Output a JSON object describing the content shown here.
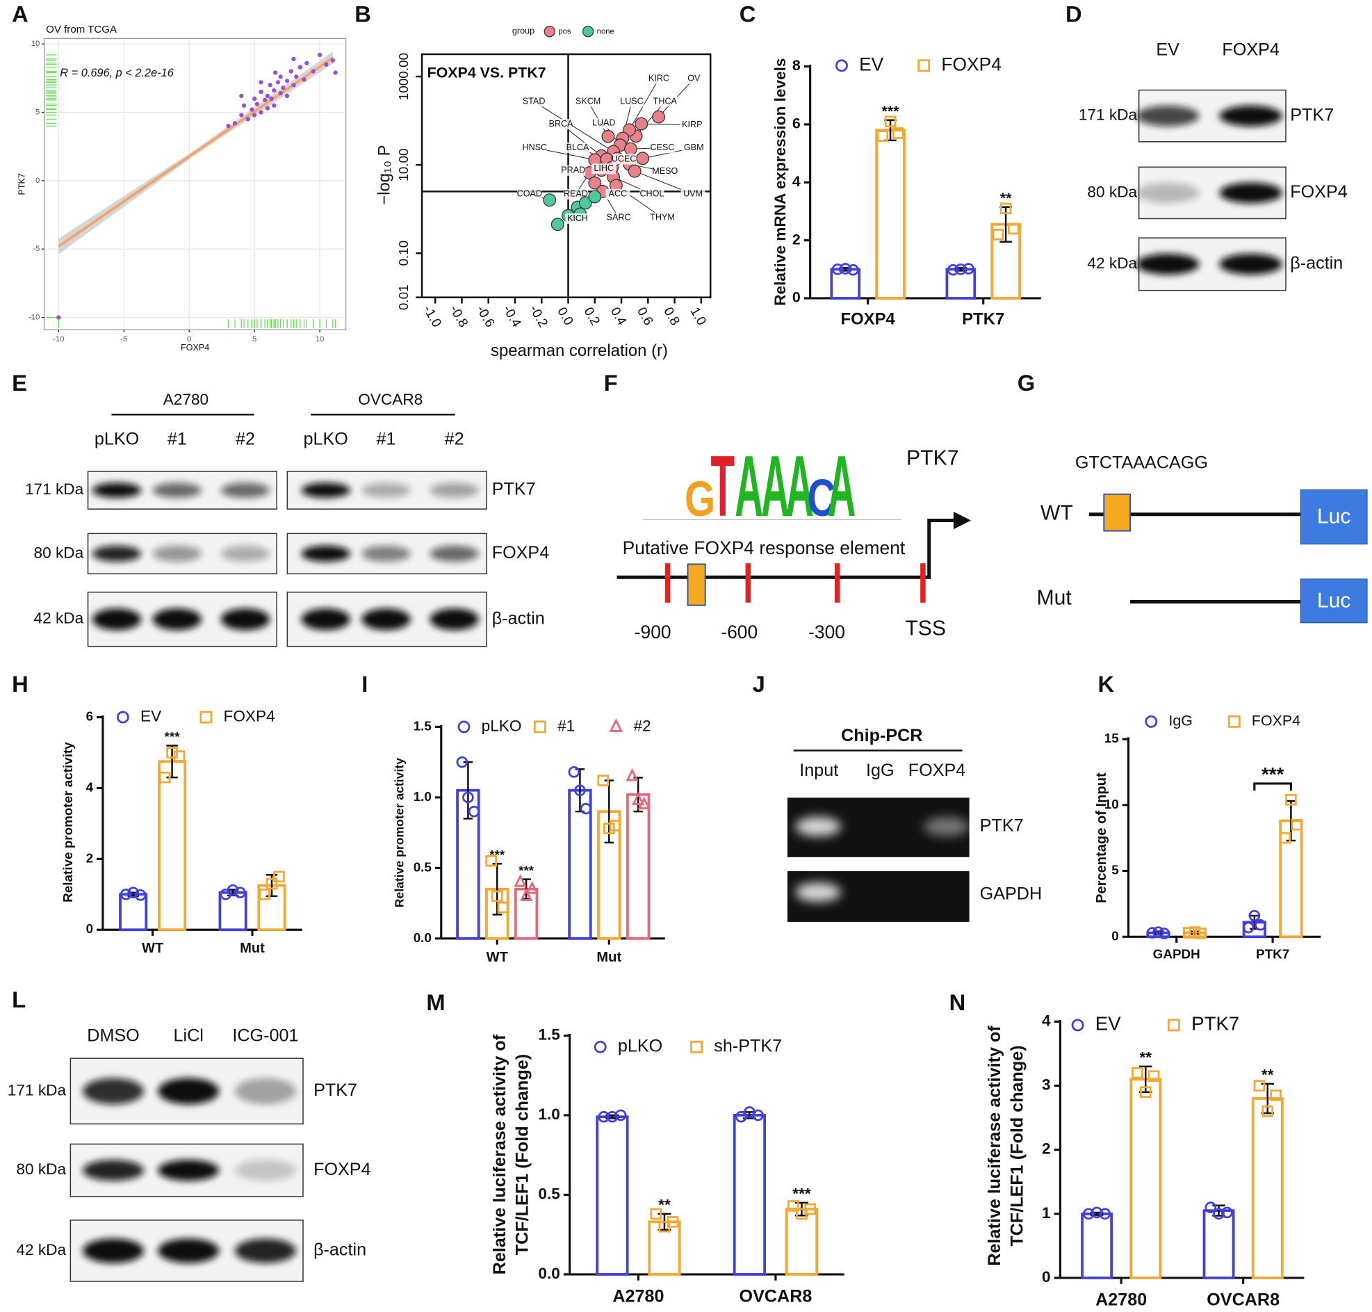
{
  "panel_letters": [
    "A",
    "B",
    "C",
    "D",
    "E",
    "F",
    "G",
    "H",
    "I",
    "J",
    "K",
    "L",
    "M",
    "N"
  ],
  "chart_data": [
    {
      "type": "scatter",
      "title": "OV from TCGA",
      "annotation": "R = 0.696, p < 2.2e-16",
      "xlabel": "FOXP4",
      "ylabel": "PTK7",
      "series": [
        {
          "color": "#9b4fd6",
          "x": [
            -10,
            3.5,
            4,
            4.2,
            4.5,
            4.8,
            5,
            5,
            5.2,
            5.5,
            5.5,
            5.8,
            6,
            6,
            6.2,
            6.3,
            6.5,
            6.5,
            6.8,
            7,
            7,
            7.2,
            7.5,
            7.5,
            7.8,
            8,
            8.2,
            8.5,
            8.8,
            9,
            9.5,
            10,
            10.5,
            11,
            11.2,
            3,
            4,
            5.5,
            6.6,
            8
          ],
          "y": [
            -10,
            4.2,
            4.8,
            5.5,
            4.5,
            5.2,
            6,
            4.8,
            5.6,
            6.5,
            5,
            5.9,
            6.2,
            5.3,
            7,
            6,
            6.6,
            5.5,
            7.2,
            6.4,
            7.6,
            6.8,
            7.3,
            6.2,
            8,
            7,
            7.6,
            8.3,
            7.4,
            8.6,
            8,
            9.2,
            8.5,
            8.8,
            7.9,
            4,
            6.2,
            7.2,
            7.9,
            8.9
          ]
        }
      ],
      "fit": {
        "color": "#f4a469",
        "x": [
          -10,
          11
        ],
        "y": [
          -4.8,
          9.0
        ]
      },
      "rug_color": "#66dd55",
      "grid": true,
      "xlim": [
        -11.1,
        12
      ],
      "ylim": [
        -10.9,
        10.4
      ],
      "xticks": [
        -10,
        -5,
        0,
        5,
        10
      ],
      "yticks": [
        -10,
        -5,
        0,
        5,
        10
      ]
    },
    {
      "type": "scatter",
      "title": "FOXP4 VS. PTK7",
      "xlabel": "spearman correlation (r)",
      "ylabel": "−log₁₀ P",
      "legend_title": "group",
      "yscale": "log",
      "series": [
        {
          "name": "pos",
          "color": "#e8818a",
          "x": [
            0.68,
            0.55,
            0.51,
            0.46,
            0.41,
            0.3,
            0.39,
            0.47,
            0.56,
            0.46,
            0.34,
            0.25,
            0.2,
            0.29,
            0.37,
            0.33,
            0.25,
            0.16,
            0.2,
            0.34,
            0.5,
            0.36,
            0.26
          ],
          "y": [
            122,
            85,
            45,
            62,
            40,
            44,
            28,
            23,
            14,
            10.4,
            20,
            16,
            13,
            13.5,
            14,
            8.7,
            7.6,
            6.6,
            3.9,
            5.3,
            7.2,
            3.4,
            2.5
          ],
          "labels": [
            "OV",
            "KIRP",
            "THCA",
            "KIRC",
            "LUSC",
            "SKCM",
            "LUAD",
            "CESC",
            "GBM",
            "MESO",
            "STAD",
            "BRCA",
            "HNSC",
            "BLCA",
            "UCEC",
            "LIHC",
            "PRAD",
            "READ",
            "ACC",
            "CHOL",
            "UVM",
            "THYM",
            "SARC"
          ]
        },
        {
          "name": "none",
          "color": "#4dc9a0",
          "x": [
            -0.14,
            0.0,
            -0.08,
            0.07,
            0.13,
            0.2,
            0.09
          ],
          "y": [
            1.6,
            0.71,
            0.45,
            1.1,
            1.38,
            1.9,
            0.77
          ],
          "labels": [
            "COAD",
            "KICH",
            null,
            null,
            null,
            null,
            null
          ]
        }
      ],
      "hline": 2.5,
      "vline": 0,
      "xlim": [
        -1.1,
        1.07
      ],
      "ylim": [
        0.01,
        3200
      ],
      "xticks": [
        {
          "value": -1,
          "label": "-1.0"
        },
        {
          "value": -0.8,
          "label": "-0.8"
        },
        {
          "value": -0.6,
          "label": "-0.6"
        },
        {
          "value": -0.4,
          "label": "-0.4"
        },
        {
          "value": -0.2,
          "label": "-0.2"
        },
        {
          "value": 0,
          "label": "0.0"
        },
        {
          "value": 0.2,
          "label": "0.2"
        },
        {
          "value": 0.4,
          "label": "0.4"
        },
        {
          "value": 0.6,
          "label": "0.6"
        },
        {
          "value": 0.8,
          "label": "0.8"
        },
        {
          "value": 1,
          "label": "1.0"
        }
      ],
      "yticks": [
        0.01,
        {
          "value": 0.1,
          "label": "0.10"
        },
        {
          "value": 10,
          "label": "10.00"
        },
        {
          "value": 1000,
          "label": "1000.00"
        }
      ]
    },
    {
      "type": "bar",
      "ylabel": "Relative mRNA expression levels",
      "categories": [
        "FOXP4",
        "PTK7"
      ],
      "series": [
        {
          "name": "EV",
          "color": "#4040e0",
          "marker": "circle",
          "values": [
            1.0,
            1.0
          ],
          "errors": [
            0.05,
            0.05
          ],
          "points": [
            [
              1.0,
              1.02,
              0.98
            ],
            [
              0.98,
              1.0,
              1.02
            ]
          ],
          "annotations": [
            null,
            null
          ]
        },
        {
          "name": "FOXP4",
          "color": "#f4a832",
          "marker": "square",
          "values": [
            5.8,
            2.55
          ],
          "errors": [
            0.35,
            0.6
          ],
          "points": [
            [
              5.6,
              6.1,
              5.7
            ],
            [
              2.2,
              3.1,
              2.4
            ]
          ],
          "annotations": [
            "***",
            "**"
          ]
        }
      ],
      "ylim": [
        0,
        8
      ],
      "yticks": [
        0,
        2,
        4,
        6,
        8
      ]
    },
    {
      "type": "bar",
      "ylabel": "Relative promoter activity",
      "categories": [
        "WT",
        "Mut"
      ],
      "series": [
        {
          "name": "EV",
          "color": "#4040e0",
          "marker": "circle",
          "values": [
            1.0,
            1.05
          ],
          "errors": [
            0.05,
            0.08
          ],
          "points": [
            [
              1.0,
              1.05,
              0.98
            ],
            [
              1.0,
              1.12,
              1.05
            ]
          ],
          "annotations": [
            null,
            null
          ]
        },
        {
          "name": "FOXP4",
          "color": "#f4a832",
          "marker": "square",
          "values": [
            4.75,
            1.25
          ],
          "errors": [
            0.45,
            0.3
          ],
          "points": [
            [
              4.3,
              5.0,
              4.9
            ],
            [
              1.0,
              1.3,
              1.5
            ]
          ],
          "annotations": [
            "***",
            null
          ]
        }
      ],
      "ylim": [
        0,
        6
      ],
      "yticks": [
        0,
        2,
        4,
        6
      ]
    },
    {
      "type": "bar",
      "ylabel": "Relative promoter activity",
      "categories": [
        "WT",
        "Mut"
      ],
      "series": [
        {
          "name": "pLKO",
          "color": "#4040e0",
          "marker": "circle",
          "values": [
            1.05,
            1.05
          ],
          "errors": [
            0.2,
            0.15
          ],
          "points": [
            [
              1.25,
              1.0,
              0.9
            ],
            [
              1.18,
              1.05,
              0.92
            ]
          ],
          "annotations": [
            null,
            null
          ]
        },
        {
          "name": "#1",
          "color": "#f4a832",
          "marker": "square",
          "values": [
            0.35,
            0.9
          ],
          "errors": [
            0.18,
            0.22
          ],
          "points": [
            [
              0.55,
              0.3,
              0.22
            ],
            [
              1.12,
              0.78,
              0.8
            ]
          ],
          "annotations": [
            "***",
            null
          ]
        },
        {
          "name": "#2",
          "color": "#e8687a",
          "marker": "triangle",
          "values": [
            0.35,
            1.02
          ],
          "errors": [
            0.07,
            0.12
          ],
          "points": [
            [
              0.4,
              0.3,
              0.35
            ],
            [
              1.15,
              0.98,
              0.95
            ]
          ],
          "annotations": [
            "***",
            null
          ]
        }
      ],
      "ylim": [
        0,
        1.5
      ],
      "yticks": [
        {
          "value": 0,
          "label": "0.0"
        },
        {
          "value": 0.5,
          "label": "0.5"
        },
        {
          "value": 1,
          "label": "1.0"
        },
        {
          "value": 1.5,
          "label": "1.5"
        }
      ]
    },
    {
      "type": "bar",
      "ylabel": "Percentage of Input",
      "categories": [
        "GAPDH",
        "PTK7"
      ],
      "bracket": true,
      "series": [
        {
          "name": "IgG",
          "color": "#4040e0",
          "marker": "circle",
          "values": [
            0.3,
            1.1
          ],
          "errors": [
            0.1,
            0.5
          ],
          "points": [
            [
              0.3,
              0.35,
              0.25
            ],
            [
              0.7,
              1.6,
              0.9
            ]
          ],
          "annotations": [
            null,
            null
          ]
        },
        {
          "name": "FOXP4",
          "color": "#f4a832",
          "marker": "square",
          "values": [
            0.3,
            8.8
          ],
          "errors": [
            0.1,
            1.5
          ],
          "points": [
            [
              0.3,
              0.35,
              0.25
            ],
            [
              7.5,
              10.4,
              8.5
            ]
          ],
          "annotations": [
            null,
            "***"
          ]
        }
      ],
      "ylim": [
        0,
        15
      ],
      "yticks": [
        0,
        5,
        10,
        15
      ]
    },
    {
      "type": "bar",
      "ylabel": [
        "Relative luciferase activity of",
        "TCF/LEF1 (Fold change)"
      ],
      "categories": [
        "A2780",
        "OVCAR8"
      ],
      "series": [
        {
          "name": "pLKO",
          "color": "#4040e0",
          "marker": "circle",
          "values": [
            0.99,
            1.0
          ],
          "errors": [
            0.01,
            0.02
          ],
          "points": [
            [
              0.99,
              0.99,
              1.0
            ],
            [
              0.99,
              1.02,
              1.0
            ]
          ],
          "annotations": [
            null,
            null
          ]
        },
        {
          "name": "sh-PTK7",
          "color": "#f4a832",
          "marker": "square",
          "values": [
            0.33,
            0.41
          ],
          "errors": [
            0.05,
            0.04
          ],
          "points": [
            [
              0.38,
              0.3,
              0.33
            ],
            [
              0.43,
              0.38,
              0.41
            ]
          ],
          "annotations": [
            "**",
            "***"
          ]
        }
      ],
      "ylim": [
        0,
        1.5
      ],
      "yticks": [
        {
          "value": 0,
          "label": "0.0"
        },
        {
          "value": 0.5,
          "label": "0.5"
        },
        {
          "value": 1,
          "label": "1.0"
        },
        {
          "value": 1.5,
          "label": "1.5"
        }
      ]
    },
    {
      "type": "bar",
      "ylabel": [
        "Relative luciferase activity of",
        "TCF/LEF1 (Fold change)"
      ],
      "categories": [
        "A2780",
        "OVCAR8"
      ],
      "series": [
        {
          "name": "EV",
          "color": "#4040e0",
          "marker": "circle",
          "values": [
            1.0,
            1.05
          ],
          "errors": [
            0.02,
            0.08
          ],
          "points": [
            [
              1.0,
              1.02,
              1.0
            ],
            [
              1.1,
              1.0,
              1.02
            ]
          ],
          "annotations": [
            null,
            null
          ]
        },
        {
          "name": "PTK7",
          "color": "#f4a832",
          "marker": "square",
          "values": [
            3.1,
            2.8
          ],
          "errors": [
            0.2,
            0.23
          ],
          "points": [
            [
              3.2,
              2.9,
              3.15
            ],
            [
              3.0,
              2.6,
              2.85
            ]
          ],
          "annotations": [
            "**",
            "**"
          ]
        }
      ],
      "ylim": [
        0,
        4
      ],
      "yticks": [
        0,
        1,
        2,
        3,
        4
      ]
    }
  ],
  "blots": [
    {
      "lanes": [
        "EV",
        "FOXP4"
      ],
      "markers": [
        "171 kDa",
        "80 kDa",
        "42 kDa"
      ],
      "proteins": [
        "PTK7",
        "FOXP4",
        "β-actin"
      ]
    },
    {
      "groups": [
        "A2780",
        "OVCAR8"
      ],
      "lanes": [
        "pLKO",
        "#1",
        "#2",
        "pLKO",
        "#1",
        "#2"
      ],
      "markers": [
        "171 kDa",
        "80 kDa",
        "42 kDa"
      ],
      "proteins": [
        "PTK7",
        "FOXP4",
        "β-actin"
      ]
    },
    {
      "lanes": [
        "DMSO",
        "LiCl",
        "ICG-001"
      ],
      "markers": [
        "171 kDa",
        "80 kDa",
        "42 kDa"
      ],
      "proteins": [
        "PTK7",
        "FOXP4",
        "β-actin"
      ]
    }
  ],
  "promoter": {
    "logo": [
      "G",
      "T",
      "A",
      "A",
      "A",
      "C",
      "A"
    ],
    "gene": "PTK7",
    "element": "Putative FOXP4 response element",
    "positions": [
      "-900",
      "-600",
      "-300",
      "TSS"
    ]
  },
  "reporter": {
    "sequence": "GTCTAAACAGG",
    "constructs": [
      "WT",
      "Mut"
    ],
    "reporter": "Luc"
  },
  "chip": {
    "title": "Chip-PCR",
    "lanes": [
      "Input",
      "IgG",
      "FOXP4"
    ],
    "genes": [
      "PTK7",
      "GAPDH"
    ]
  }
}
